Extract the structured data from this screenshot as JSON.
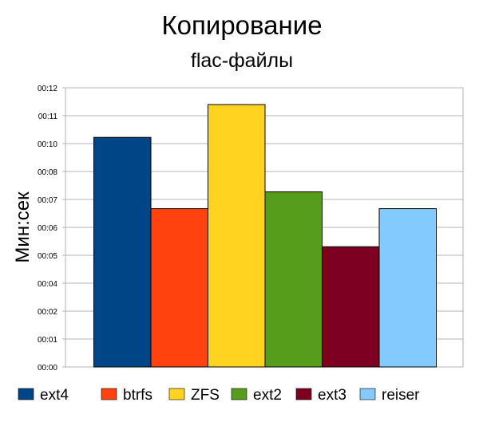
{
  "chart_data": {
    "type": "bar",
    "title": "Копирование",
    "subtitle": "flac-файлы",
    "xlabel": "",
    "ylabel": "Мин:сек",
    "y_tick_labels": [
      "00:00",
      "00:01",
      "00:02",
      "00:04",
      "00:05",
      "00:06",
      "00:07",
      "00:08",
      "00:10",
      "00:11",
      "00:12"
    ],
    "ylim": [
      0,
      12.1
    ],
    "y_unit": "seconds",
    "grid": true,
    "legend_position": "bottom",
    "series": [
      {
        "name": "ext4",
        "value": 9.95,
        "color": "#004586"
      },
      {
        "name": "btrfs",
        "value": 6.86,
        "color": "#ff420e"
      },
      {
        "name": "ZFS",
        "value": 11.37,
        "color": "#ffd320"
      },
      {
        "name": "ext2",
        "value": 7.59,
        "color": "#579d1c"
      },
      {
        "name": "ext3",
        "value": 5.21,
        "color": "#7e0021"
      },
      {
        "name": "reiser",
        "value": 6.86,
        "color": "#83caff"
      }
    ]
  }
}
